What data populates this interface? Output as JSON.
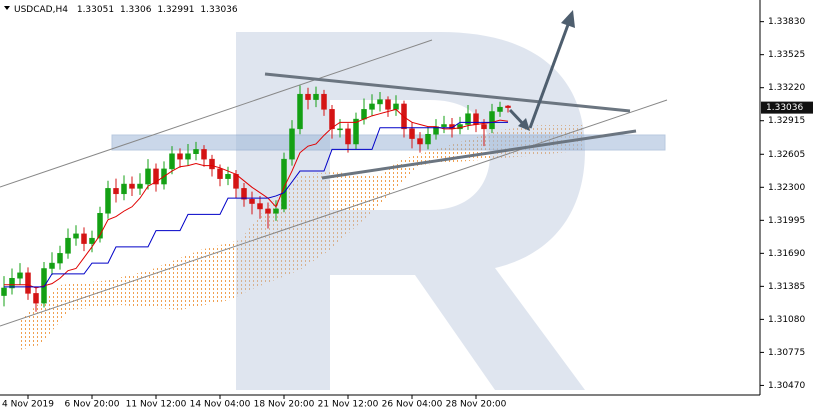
{
  "chart_data": {
    "type": "candlestick",
    "title": "USDCAD,H4",
    "categories": [
      null,
      null,
      null,
      "4 Nov 2019",
      null,
      null,
      null,
      null,
      null,
      null,
      null,
      "6 Nov 20:00",
      null,
      null,
      null,
      null,
      null,
      null,
      null,
      "11 Nov 12:00",
      null,
      null,
      null,
      null,
      null,
      null,
      null,
      "14 Nov 04:00",
      null,
      null,
      null,
      null,
      null,
      null,
      null,
      "18 Nov 20:00",
      null,
      null,
      null,
      null,
      null,
      null,
      null,
      "21 Nov 12:00",
      null,
      null,
      null,
      null,
      null,
      null,
      null,
      "26 Nov 04:00",
      null,
      null,
      null,
      null,
      null,
      null,
      null,
      "28 Nov 20:00",
      null,
      null,
      null,
      null
    ],
    "open": [
      1.313,
      1.3137,
      1.3146,
      1.3151,
      1.3132,
      1.3123,
      1.3155,
      1.316,
      1.3169,
      1.3183,
      1.3187,
      1.3178,
      1.3183,
      1.3206,
      1.3229,
      1.3224,
      1.3233,
      1.3229,
      1.3233,
      1.3247,
      1.3233,
      1.3247,
      1.3261,
      1.3256,
      1.3261,
      1.3265,
      1.3256,
      1.3247,
      1.3238,
      1.3242,
      1.3229,
      1.3219,
      1.3215,
      1.321,
      1.3206,
      1.321,
      1.3256,
      1.3284,
      1.3316,
      1.3311,
      1.3316,
      1.3302,
      1.3284,
      1.3284,
      1.327,
      1.3293,
      1.3302,
      1.3307,
      1.3311,
      1.3302,
      1.3307,
      1.3284,
      1.3275,
      1.327,
      1.3279,
      1.3286,
      1.3288,
      1.3284,
      1.3288,
      1.3298,
      1.3288,
      1.3284,
      1.33,
      1.33051
    ],
    "high": [
      1.3148,
      1.3155,
      1.316,
      1.3156,
      1.3138,
      1.3161,
      1.317,
      1.3176,
      1.3192,
      1.3195,
      1.3193,
      1.319,
      1.3212,
      1.3236,
      1.3238,
      1.3241,
      1.324,
      1.3243,
      1.3256,
      1.3252,
      1.3254,
      1.3268,
      1.3266,
      1.327,
      1.3272,
      1.3269,
      1.326,
      1.3251,
      1.3249,
      1.3246,
      1.3234,
      1.3226,
      1.3222,
      1.3216,
      1.3218,
      1.3262,
      1.3292,
      1.3324,
      1.3322,
      1.3323,
      1.332,
      1.3306,
      1.3293,
      1.3289,
      1.3299,
      1.3312,
      1.3316,
      1.3318,
      1.3314,
      1.3315,
      1.331,
      1.329,
      1.3281,
      1.3286,
      1.3293,
      1.3296,
      1.3294,
      1.3295,
      1.3306,
      1.3302,
      1.3293,
      1.3307,
      1.3309,
      1.3306
    ],
    "low": [
      1.312,
      1.3131,
      1.314,
      1.3126,
      1.3115,
      1.3119,
      1.3149,
      1.3154,
      1.3164,
      1.3176,
      1.3171,
      1.317,
      1.3179,
      1.3201,
      1.3216,
      1.3218,
      1.3222,
      1.3223,
      1.3228,
      1.3226,
      1.3228,
      1.3242,
      1.3248,
      1.325,
      1.3255,
      1.3249,
      1.324,
      1.3231,
      1.3232,
      1.322,
      1.3212,
      1.3205,
      1.3201,
      1.3192,
      1.3199,
      1.3207,
      1.325,
      1.3279,
      1.3302,
      1.3304,
      1.3296,
      1.3275,
      1.3276,
      1.3262,
      1.3265,
      1.3288,
      1.3296,
      1.33,
      1.3295,
      1.3296,
      1.3276,
      1.3266,
      1.3262,
      1.3265,
      1.3274,
      1.328,
      1.3276,
      1.3279,
      1.3283,
      1.3281,
      1.3268,
      1.328,
      1.3295,
      1.32991
    ],
    "close": [
      1.3137,
      1.3146,
      1.3151,
      1.3132,
      1.3123,
      1.3155,
      1.316,
      1.3169,
      1.3183,
      1.3187,
      1.3178,
      1.3183,
      1.3206,
      1.3229,
      1.3224,
      1.3233,
      1.3229,
      1.3233,
      1.3247,
      1.3233,
      1.3247,
      1.3261,
      1.3256,
      1.3261,
      1.3265,
      1.3256,
      1.3247,
      1.3238,
      1.3242,
      1.3229,
      1.3219,
      1.3215,
      1.321,
      1.3206,
      1.321,
      1.3256,
      1.3284,
      1.3316,
      1.3311,
      1.3316,
      1.3302,
      1.3284,
      1.3284,
      1.327,
      1.3293,
      1.3302,
      1.3307,
      1.3311,
      1.3302,
      1.3307,
      1.3284,
      1.3275,
      1.327,
      1.3279,
      1.3286,
      1.3288,
      1.3284,
      1.3288,
      1.3298,
      1.3288,
      1.3284,
      1.33,
      1.3304,
      1.33036
    ],
    "up_color": "#14a014",
    "down_color": "#d41414",
    "series": [
      {
        "color": "#e00000",
        "values": [
          1.314,
          1.314,
          1.314,
          1.314,
          1.3137,
          1.3139,
          1.3141,
          1.3146,
          1.3153,
          1.3155,
          1.3165,
          1.3175,
          1.3186,
          1.32,
          1.3203,
          1.3208,
          1.3212,
          1.322,
          1.3231,
          1.3235,
          1.324,
          1.3245,
          1.3249,
          1.325,
          1.3252,
          1.325,
          1.325,
          1.3248,
          1.3245,
          1.3242,
          1.3236,
          1.323,
          1.3225,
          1.322,
          1.3212,
          1.323,
          1.3245,
          1.3262,
          1.3268,
          1.327,
          1.3278,
          1.3285,
          1.329,
          1.329,
          1.329,
          1.3293,
          1.3296,
          1.3298,
          1.33,
          1.3302,
          1.3295,
          1.329,
          1.3288,
          1.3286,
          1.3286,
          1.3284,
          1.3284,
          1.3285,
          1.3287,
          1.3288,
          1.3289,
          1.329,
          1.3292,
          1.3291
        ]
      },
      {
        "color": "#0000c8",
        "values": [
          1.3138,
          1.3138,
          1.3138,
          1.3138,
          1.3138,
          1.3138,
          1.315,
          1.315,
          1.315,
          1.315,
          1.315,
          1.316,
          1.316,
          1.316,
          1.3175,
          1.3175,
          1.3175,
          1.3175,
          1.3175,
          1.319,
          1.319,
          1.319,
          1.319,
          1.3205,
          1.3205,
          1.3205,
          1.3205,
          1.3205,
          1.322,
          1.322,
          1.322,
          1.322,
          1.322,
          1.322,
          1.3222,
          1.3225,
          1.3235,
          1.3245,
          1.3245,
          1.3245,
          1.3245,
          1.3265,
          1.3265,
          1.3265,
          1.3265,
          1.3265,
          1.3265,
          1.3285,
          1.3285,
          1.3285,
          1.3285,
          1.3285,
          1.3285,
          1.3285,
          1.3285,
          1.3285,
          1.3285,
          1.329,
          1.329,
          1.329,
          1.329,
          1.329,
          1.329,
          1.329
        ]
      }
    ],
    "ylim": [
      1.304,
      1.3403
    ],
    "yticks": [
      {
        "value": 1.3383,
        "label": "1.33830"
      },
      1.33525,
      {
        "value": 1.3322,
        "label": "1.33220"
      },
      {
        "value": 1.32915,
        "label": "1.32915"
      },
      1.32605,
      {
        "value": 1.323,
        "label": "1.32300"
      },
      1.31995,
      {
        "value": 1.3169,
        "label": "1.31690"
      },
      1.31385,
      {
        "value": 1.3108,
        "label": "1.31080"
      },
      1.30775,
      {
        "value": 1.3047,
        "label": "1.30470"
      }
    ],
    "grid": false
  }
}
